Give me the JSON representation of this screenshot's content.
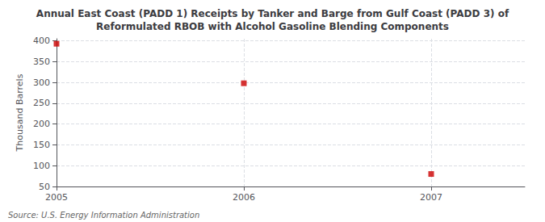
{
  "chart_data": {
    "type": "scatter",
    "title": "Annual East Coast (PADD 1) Receipts by Tanker and Barge from Gulf Coast (PADD 3) of\nReformulated RBOB with Alcohol Gasoline Blending Components",
    "ylabel": "Thousand Barrels",
    "annotations": [
      "Source: U.S. Energy Information Administration"
    ],
    "x": [
      2005,
      2006,
      2007
    ],
    "values": [
      393,
      298,
      80
    ],
    "color": "#cc0000",
    "marker": "square",
    "xlim": [
      2005.0,
      2007.5
    ],
    "xticks": [
      2005,
      2006,
      2007
    ],
    "ylim": [
      50,
      405
    ],
    "yticks": [
      50,
      100,
      150,
      200,
      250,
      300,
      350,
      400
    ],
    "grid": true
  }
}
